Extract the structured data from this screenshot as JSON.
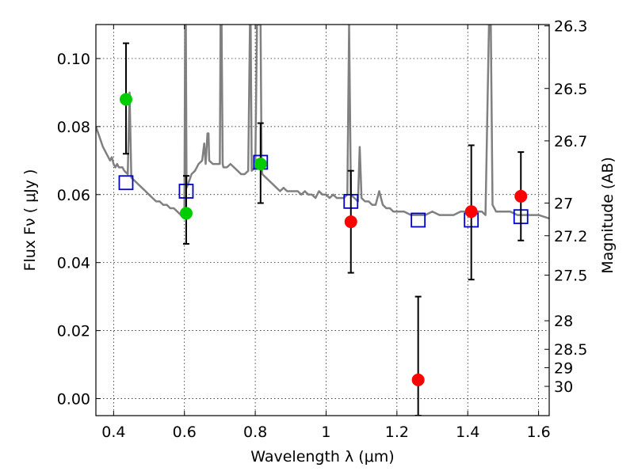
{
  "chart_data": {
    "type": "scatter",
    "xlabel": "Wavelength  λ (μm)",
    "ylabel_left": "Flux  Fν  ( μJy )",
    "ylabel_right": "Magnitude (AB)",
    "xlim": [
      0.35,
      1.63
    ],
    "ylim": [
      -0.005,
      0.11
    ],
    "grid": true,
    "x_ticks": [
      {
        "value": 0.4,
        "label": "0.4"
      },
      {
        "value": 0.6,
        "label": "0.6"
      },
      {
        "value": 0.8,
        "label": "0.8"
      },
      {
        "value": 1.0,
        "label": "1"
      },
      {
        "value": 1.2,
        "label": "1.2"
      },
      {
        "value": 1.4,
        "label": "1.4"
      },
      {
        "value": 1.6,
        "label": "1.6"
      }
    ],
    "y_ticks": [
      {
        "value": 0.0,
        "label": "0.00"
      },
      {
        "value": 0.02,
        "label": "0.02"
      },
      {
        "value": 0.04,
        "label": "0.04"
      },
      {
        "value": 0.06,
        "label": "0.06"
      },
      {
        "value": 0.08,
        "label": "0.08"
      },
      {
        "value": 0.1,
        "label": "0.10"
      }
    ],
    "right_ticks": [
      {
        "label": "26.3",
        "flux": 0.1096
      },
      {
        "label": "26.5",
        "flux": 0.0912
      },
      {
        "label": "26.7",
        "flux": 0.0758
      },
      {
        "label": "27",
        "flux": 0.0575
      },
      {
        "label": "27.2",
        "flux": 0.0479
      },
      {
        "label": "27.5",
        "flux": 0.0363
      },
      {
        "label": "28",
        "flux": 0.0229
      },
      {
        "label": "28.5",
        "flux": 0.0145
      },
      {
        "label": "29",
        "flux": 0.0091
      },
      {
        "label": "30",
        "flux": 0.0036
      }
    ],
    "series": [
      {
        "kind": "line",
        "color": "#808080",
        "x": [
          0.35,
          0.36,
          0.37,
          0.38,
          0.39,
          0.395,
          0.4,
          0.405,
          0.41,
          0.415,
          0.42,
          0.425,
          0.43,
          0.44,
          0.445,
          0.45,
          0.46,
          0.47,
          0.48,
          0.49,
          0.5,
          0.51,
          0.52,
          0.53,
          0.54,
          0.55,
          0.56,
          0.57,
          0.58,
          0.59,
          0.6,
          0.602,
          0.604,
          0.606,
          0.61,
          0.62,
          0.63,
          0.64,
          0.65,
          0.656,
          0.66,
          0.665,
          0.668,
          0.67,
          0.68,
          0.69,
          0.7,
          0.702,
          0.705,
          0.708,
          0.71,
          0.72,
          0.73,
          0.74,
          0.75,
          0.76,
          0.77,
          0.78,
          0.785,
          0.787,
          0.79,
          0.8,
          0.805,
          0.807,
          0.81,
          0.812,
          0.815,
          0.818,
          0.82,
          0.83,
          0.84,
          0.85,
          0.86,
          0.87,
          0.88,
          0.89,
          0.9,
          0.91,
          0.92,
          0.93,
          0.94,
          0.95,
          0.96,
          0.97,
          0.98,
          0.99,
          1.0,
          1.01,
          1.02,
          1.03,
          1.04,
          1.05,
          1.06,
          1.065,
          1.07,
          1.08,
          1.09,
          1.095,
          1.1,
          1.11,
          1.12,
          1.13,
          1.14,
          1.15,
          1.16,
          1.17,
          1.18,
          1.19,
          1.2,
          1.22,
          1.24,
          1.26,
          1.28,
          1.3,
          1.32,
          1.34,
          1.36,
          1.38,
          1.4,
          1.42,
          1.44,
          1.45,
          1.46,
          1.465,
          1.47,
          1.48,
          1.5,
          1.52,
          1.54,
          1.56,
          1.58,
          1.6,
          1.63
        ],
        "y": [
          0.08,
          0.077,
          0.074,
          0.072,
          0.07,
          0.071,
          0.069,
          0.068,
          0.069,
          0.068,
          0.068,
          0.068,
          0.067,
          0.066,
          0.09,
          0.065,
          0.064,
          0.063,
          0.062,
          0.061,
          0.06,
          0.059,
          0.058,
          0.058,
          0.057,
          0.057,
          0.056,
          0.056,
          0.055,
          0.054,
          0.055,
          0.11,
          0.11,
          0.062,
          0.063,
          0.066,
          0.067,
          0.069,
          0.07,
          0.075,
          0.069,
          0.078,
          0.078,
          0.07,
          0.069,
          0.069,
          0.069,
          0.11,
          0.11,
          0.069,
          0.068,
          0.068,
          0.069,
          0.068,
          0.067,
          0.066,
          0.066,
          0.067,
          0.11,
          0.11,
          0.067,
          0.068,
          0.11,
          0.11,
          0.11,
          0.11,
          0.11,
          0.068,
          0.066,
          0.065,
          0.064,
          0.063,
          0.062,
          0.061,
          0.062,
          0.061,
          0.061,
          0.061,
          0.061,
          0.06,
          0.061,
          0.06,
          0.06,
          0.059,
          0.061,
          0.06,
          0.06,
          0.059,
          0.06,
          0.059,
          0.059,
          0.059,
          0.06,
          0.11,
          0.06,
          0.059,
          0.058,
          0.074,
          0.059,
          0.058,
          0.058,
          0.057,
          0.057,
          0.061,
          0.057,
          0.056,
          0.056,
          0.055,
          0.055,
          0.055,
          0.054,
          0.054,
          0.054,
          0.055,
          0.054,
          0.054,
          0.054,
          0.055,
          0.055,
          0.055,
          0.055,
          0.054,
          0.11,
          0.11,
          0.057,
          0.055,
          0.055,
          0.055,
          0.054,
          0.054,
          0.054,
          0.054,
          0.053
        ]
      },
      {
        "kind": "model-boxes",
        "color": "#0000cc",
        "x": [
          0.435,
          0.605,
          0.815,
          1.07,
          1.26,
          1.41,
          1.55
        ],
        "y": [
          0.0635,
          0.061,
          0.0695,
          0.058,
          0.0525,
          0.0525,
          0.0535
        ]
      },
      {
        "kind": "points-with-errors",
        "color": "#00cc00",
        "x": [
          0.435,
          0.605,
          0.815
        ],
        "y": [
          0.088,
          0.0545,
          0.069
        ],
        "err_low": [
          0.072,
          0.0455,
          0.0575
        ],
        "err_high": [
          0.1045,
          0.0655,
          0.081
        ]
      },
      {
        "kind": "points-with-errors",
        "color": "#ff0000",
        "x": [
          1.07,
          1.26,
          1.41,
          1.55
        ],
        "y": [
          0.052,
          0.0055,
          0.055,
          0.0595
        ],
        "err_low": [
          0.037,
          -0.005,
          0.035,
          0.0465
        ],
        "err_high": [
          0.067,
          0.03,
          0.0745,
          0.0725
        ]
      }
    ]
  }
}
